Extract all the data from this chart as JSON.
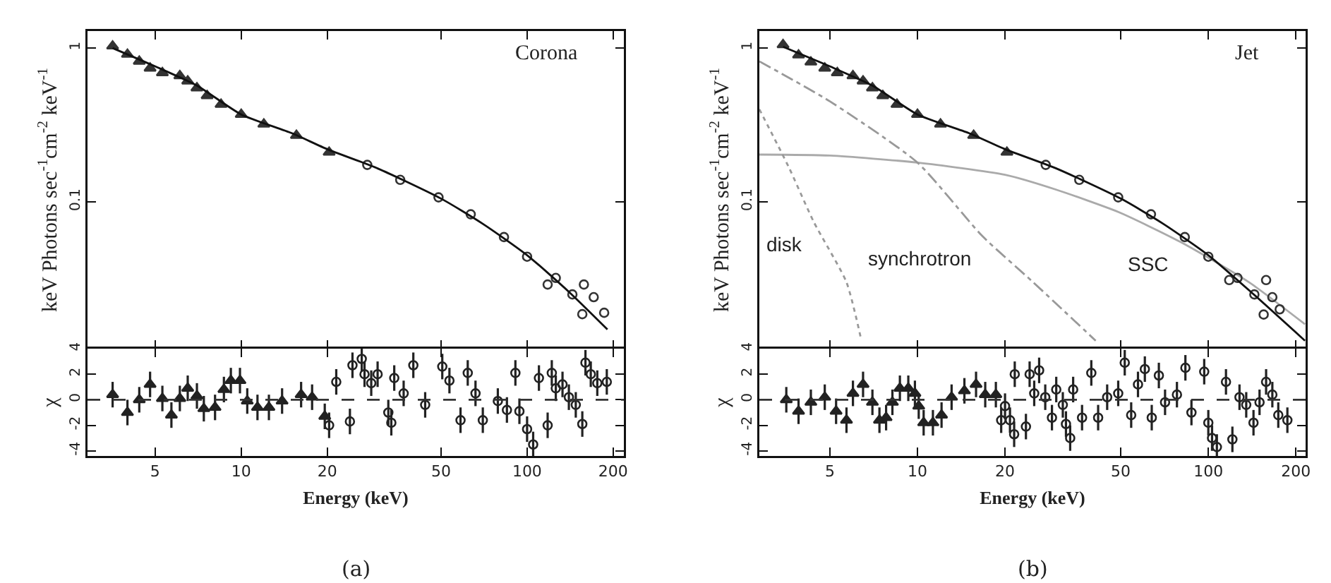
{
  "chart_data": [
    {
      "type": "scatter",
      "ylabel": "keV Photons sec$^{-1}$cm$^{-2}$ keV$^{-1}$",
      "log": "xy",
      "xlim": [
        2.9,
        218
      ],
      "xticks": [
        5,
        10,
        20,
        50,
        100,
        200
      ],
      "ylim": [
        0.0111,
        1.29
      ],
      "yticks": [
        0.1,
        1
      ],
      "tick_labels": "y",
      "grid": false,
      "annotations": [
        "Corona"
      ],
      "series": [
        {
          "color": "#333333",
          "marker": "triangle",
          "x": [
            3.55,
            4.0,
            4.4,
            4.8,
            5.3,
            6.1,
            6.5,
            7.0,
            7.6,
            8.5,
            10,
            12,
            15.6,
            20.3
          ],
          "values": [
            1.03,
            0.91,
            0.82,
            0.74,
            0.69,
            0.66,
            0.61,
            0.55,
            0.49,
            0.43,
            0.37,
            0.32,
            0.27,
            0.21
          ]
        },
        {
          "color": "#333333",
          "marker": "circle",
          "x": [
            27.6,
            36,
            49,
            63.5,
            83,
            100,
            118,
            126,
            144,
            156,
            158,
            171,
            186
          ],
          "values": [
            0.174,
            0.139,
            0.107,
            0.083,
            0.059,
            0.044,
            0.029,
            0.032,
            0.025,
            0.0186,
            0.029,
            0.024,
            0.019
          ]
        },
        {
          "type": "line",
          "color": "#111111",
          "line_style": "solid",
          "x": [
            3.55,
            5,
            7,
            10,
            15,
            20,
            30,
            50,
            70,
            100,
            140,
            191
          ],
          "values": [
            1.0,
            0.76,
            0.57,
            0.37,
            0.28,
            0.22,
            0.165,
            0.105,
            0.072,
            0.045,
            0.026,
            0.0148
          ]
        }
      ]
    },
    {
      "type": "scatter",
      "ylabel": "χ",
      "xlabel": "Energy (keV)",
      "log": "x",
      "xlim": [
        2.9,
        218
      ],
      "xticks": [
        5,
        10,
        20,
        50,
        100,
        200
      ],
      "ylim": [
        -4.4,
        4
      ],
      "yticks": [
        -4,
        -2,
        0,
        2,
        4
      ],
      "grid": false,
      "annotations": [
        "(a)"
      ],
      "ref_lines": [
        {
          "axis": "y",
          "value": 0,
          "line_style": "dashed",
          "color": "#333333"
        }
      ],
      "series": [
        {
          "color": "#222222",
          "marker": "triangle",
          "x": [
            3.55,
            4.0,
            4.4,
            4.8,
            5.3,
            5.7,
            6.1,
            6.5,
            7.0,
            7.4,
            8.1,
            8.7,
            9.2,
            9.9,
            10.5,
            11.4,
            12.5,
            13.9,
            16.2,
            17.7,
            19.6
          ],
          "values": [
            0.4,
            -1.0,
            0,
            1.2,
            0.1,
            -1.2,
            0.1,
            0.9,
            0.3,
            -0.7,
            -0.6,
            0.8,
            1.5,
            1.5,
            -0.1,
            -0.6,
            -0.6,
            -0.1,
            0.4,
            0.2,
            -1.3
          ],
          "errors": [
            1,
            1,
            1,
            1,
            1,
            1,
            1,
            1,
            1,
            1,
            1,
            1,
            1,
            1,
            1,
            1,
            1,
            1,
            1,
            1,
            1
          ]
        },
        {
          "color": "#222222",
          "marker": "circle",
          "x": [
            20.3,
            21.5,
            24,
            24.5,
            26.4,
            27,
            28.5,
            30,
            32.7,
            33.5,
            34.3,
            37,
            40,
            44,
            50.5,
            53.5,
            58.5,
            62,
            66,
            70,
            79,
            85,
            91,
            94,
            100,
            105,
            110,
            118,
            122,
            126,
            133,
            140,
            148,
            156,
            160,
            167,
            176,
            190
          ],
          "values": [
            -2.0,
            1.4,
            -1.7,
            2.7,
            3.2,
            2.0,
            1.3,
            2.0,
            -1.0,
            -1.8,
            1.7,
            0.5,
            2.7,
            -0.4,
            2.6,
            1.5,
            -1.6,
            2.1,
            0.5,
            -1.6,
            -0.1,
            -0.8,
            2.1,
            -0.9,
            -2.3,
            -3.5,
            1.7,
            -2.0,
            2.1,
            0.9,
            1.2,
            0.2,
            -0.4,
            -1.9,
            2.9,
            2.0,
            1.3,
            1.4
          ],
          "errors": [
            1,
            1,
            1,
            1,
            1,
            1,
            1,
            1,
            1,
            1,
            1,
            1,
            1,
            1,
            1,
            1,
            1,
            1,
            1,
            1,
            1,
            1,
            1,
            1,
            1,
            1,
            1,
            1,
            1,
            1,
            1,
            1,
            1,
            1,
            1,
            1,
            1,
            1
          ]
        }
      ]
    },
    {
      "type": "scatter",
      "ylabel": "keV Photons sec$^{-1}$cm$^{-2}$ keV$^{-1}$",
      "log": "xy",
      "xlim": [
        2.86,
        216
      ],
      "xticks": [
        5,
        10,
        20,
        50,
        100,
        200
      ],
      "ylim": [
        0.0111,
        1.29
      ],
      "yticks": [
        0.1,
        1
      ],
      "tick_labels": "y",
      "grid": false,
      "annotations": [
        "Jet"
      ],
      "series": [
        {
          "type": "line",
          "name": "SSC",
          "color": "#aaaaaa",
          "line_style": "solid",
          "x": [
            2.86,
            5,
            10,
            20,
            30,
            49,
            80,
            138,
            215
          ],
          "values": [
            0.203,
            0.2,
            0.18,
            0.15,
            0.12,
            0.086,
            0.055,
            0.03,
            0.016
          ]
        },
        {
          "type": "line",
          "name": "synchrotron",
          "color": "#999999",
          "line_style": "dashed",
          "x": [
            2.86,
            5,
            10,
            16.7,
            25,
            41
          ],
          "values": [
            0.82,
            0.45,
            0.18,
            0.06,
            0.03,
            0.0125
          ]
        },
        {
          "type": "line",
          "name": "disk",
          "color": "#999999",
          "line_style": "dotted",
          "x": [
            2.86,
            3.6,
            4.4,
            5.7,
            6.4
          ],
          "values": [
            0.4,
            0.17,
            0.074,
            0.03,
            0.0128
          ]
        },
        {
          "color": "#333333",
          "marker": "triangle",
          "x": [
            3.45,
            3.9,
            4.3,
            4.8,
            5.3,
            6.0,
            6.5,
            7.0,
            7.6,
            8.5,
            10,
            12,
            15.6,
            20.3
          ],
          "values": [
            1.05,
            0.9,
            0.81,
            0.74,
            0.69,
            0.66,
            0.61,
            0.55,
            0.49,
            0.43,
            0.37,
            0.32,
            0.27,
            0.21
          ]
        },
        {
          "color": "#333333",
          "marker": "circle",
          "x": [
            27.6,
            36,
            49,
            63.5,
            83,
            100,
            118,
            126,
            144,
            155,
            158,
            166,
            176
          ],
          "values": [
            0.174,
            0.139,
            0.107,
            0.083,
            0.059,
            0.044,
            0.031,
            0.032,
            0.025,
            0.0185,
            0.031,
            0.024,
            0.02
          ]
        },
        {
          "type": "line",
          "color": "#111111",
          "line_style": "solid",
          "x": [
            3.45,
            5,
            7,
            10,
            15,
            20,
            30,
            50,
            70,
            100,
            140,
            215
          ],
          "values": [
            1.02,
            0.76,
            0.57,
            0.37,
            0.28,
            0.22,
            0.165,
            0.105,
            0.072,
            0.045,
            0.026,
            0.0125
          ]
        }
      ]
    },
    {
      "type": "scatter",
      "ylabel": "χ",
      "xlabel": "Energy (keV)",
      "log": "x",
      "xlim": [
        2.86,
        216
      ],
      "xticks": [
        5,
        10,
        20,
        50,
        100,
        200
      ],
      "ylim": [
        -4.4,
        4
      ],
      "yticks": [
        -4,
        -2,
        0,
        2,
        4
      ],
      "grid": false,
      "annotations": [
        "(b)"
      ],
      "ref_lines": [
        {
          "axis": "y",
          "value": 0,
          "line_style": "dashed",
          "color": "#333333"
        }
      ],
      "series": [
        {
          "color": "#222222",
          "marker": "triangle",
          "x": [
            3.54,
            3.9,
            4.3,
            4.8,
            5.25,
            5.7,
            6.0,
            6.5,
            7.0,
            7.4,
            7.8,
            8.2,
            8.7,
            9.3,
            9.8,
            10.1,
            10.5,
            11.3,
            12.1,
            13.1,
            14.5,
            15.9,
            17.1,
            18.6
          ],
          "values": [
            0,
            -0.9,
            -0.2,
            0.2,
            -0.9,
            -1.6,
            0.5,
            1.2,
            -0.2,
            -1.6,
            -1.4,
            -0.2,
            0.9,
            0.9,
            0.5,
            -0.5,
            -1.8,
            -1.8,
            -1.2,
            0.2,
            0.7,
            1.2,
            0.4,
            0.4
          ],
          "errors": [
            1,
            1,
            1,
            1,
            1,
            1,
            1,
            1,
            1,
            1,
            1,
            1,
            1,
            1,
            1,
            1,
            1,
            1,
            1,
            1,
            1,
            1,
            1,
            1
          ]
        },
        {
          "color": "#222222",
          "marker": "circle",
          "x": [
            19.4,
            20,
            20.8,
            21.5,
            21.6,
            23.6,
            24.3,
            25.2,
            26.2,
            27.5,
            29,
            30,
            31.6,
            32.4,
            33.5,
            34.3,
            36.8,
            39.6,
            41.8,
            44.9,
            49,
            51.6,
            54.3,
            57.3,
            60.5,
            63.9,
            67.6,
            71,
            78,
            83.4,
            87.5,
            96.8,
            100,
            103,
            107,
            115,
            121,
            128,
            135,
            143,
            150,
            158,
            166,
            174,
            187
          ],
          "values": [
            -1.6,
            -0.5,
            -1.6,
            -2.7,
            2.0,
            -2.1,
            2.0,
            0.5,
            2.3,
            0.2,
            -1.4,
            0.8,
            -0.4,
            -1.9,
            -3.0,
            0.8,
            -1.4,
            2.1,
            -1.4,
            0.2,
            0.5,
            2.9,
            -1.2,
            1.2,
            2.4,
            -1.4,
            1.9,
            -0.2,
            0.4,
            2.5,
            -1.0,
            2.2,
            -1.8,
            -3.0,
            -3.7,
            1.4,
            -3.1,
            0.2,
            -0.4,
            -1.8,
            -0.2,
            1.4,
            0.4,
            -1.2,
            -1.6
          ],
          "errors": [
            1,
            1,
            1,
            1,
            1,
            1,
            1,
            1,
            1,
            1,
            1,
            1,
            1,
            1,
            1,
            1,
            1,
            1,
            1,
            1,
            1,
            1,
            1,
            1,
            1,
            1,
            1,
            1,
            1,
            1,
            1,
            1,
            1,
            1,
            1,
            1,
            1,
            1,
            1,
            1,
            1,
            1,
            1,
            1,
            1
          ]
        }
      ]
    }
  ]
}
